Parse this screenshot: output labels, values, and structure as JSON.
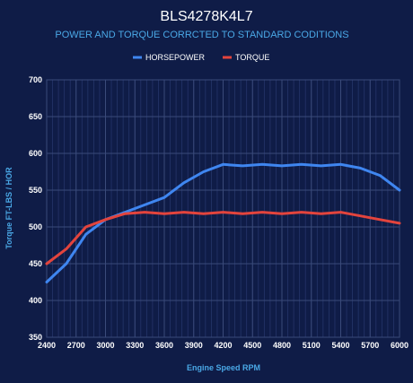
{
  "chart_data": {
    "type": "line",
    "title": "BLS4278K4L7",
    "subtitle": "POWER AND TORQUE CORRCTED TO STANDARD CODITIONS",
    "xlabel": "Engine Speed RPM",
    "ylabel": "Torque FT-LBS / HOR",
    "xlim": [
      2400,
      6000
    ],
    "ylim": [
      350,
      700
    ],
    "xticks": [
      2400,
      2700,
      3000,
      3300,
      3600,
      3900,
      4200,
      4500,
      4800,
      5100,
      5400,
      5700,
      6000
    ],
    "yticks": [
      350,
      400,
      450,
      500,
      550,
      600,
      650,
      700
    ],
    "grid": true,
    "legend_position": "top-center",
    "x": [
      2400,
      2600,
      2800,
      3000,
      3200,
      3400,
      3600,
      3800,
      4000,
      4200,
      4400,
      4600,
      4800,
      5000,
      5200,
      5400,
      5600,
      5800,
      6000
    ],
    "series": [
      {
        "name": "HORSEPOWER",
        "color": "#3f86f0",
        "values": [
          425,
          450,
          490,
          510,
          520,
          530,
          540,
          560,
          575,
          585,
          583,
          585,
          583,
          585,
          583,
          585,
          580,
          570,
          550
        ]
      },
      {
        "name": "TORQUE",
        "color": "#e3443d",
        "values": [
          450,
          470,
          500,
          510,
          518,
          520,
          518,
          520,
          518,
          520,
          518,
          520,
          518,
          520,
          518,
          520,
          515,
          510,
          505
        ]
      }
    ]
  }
}
